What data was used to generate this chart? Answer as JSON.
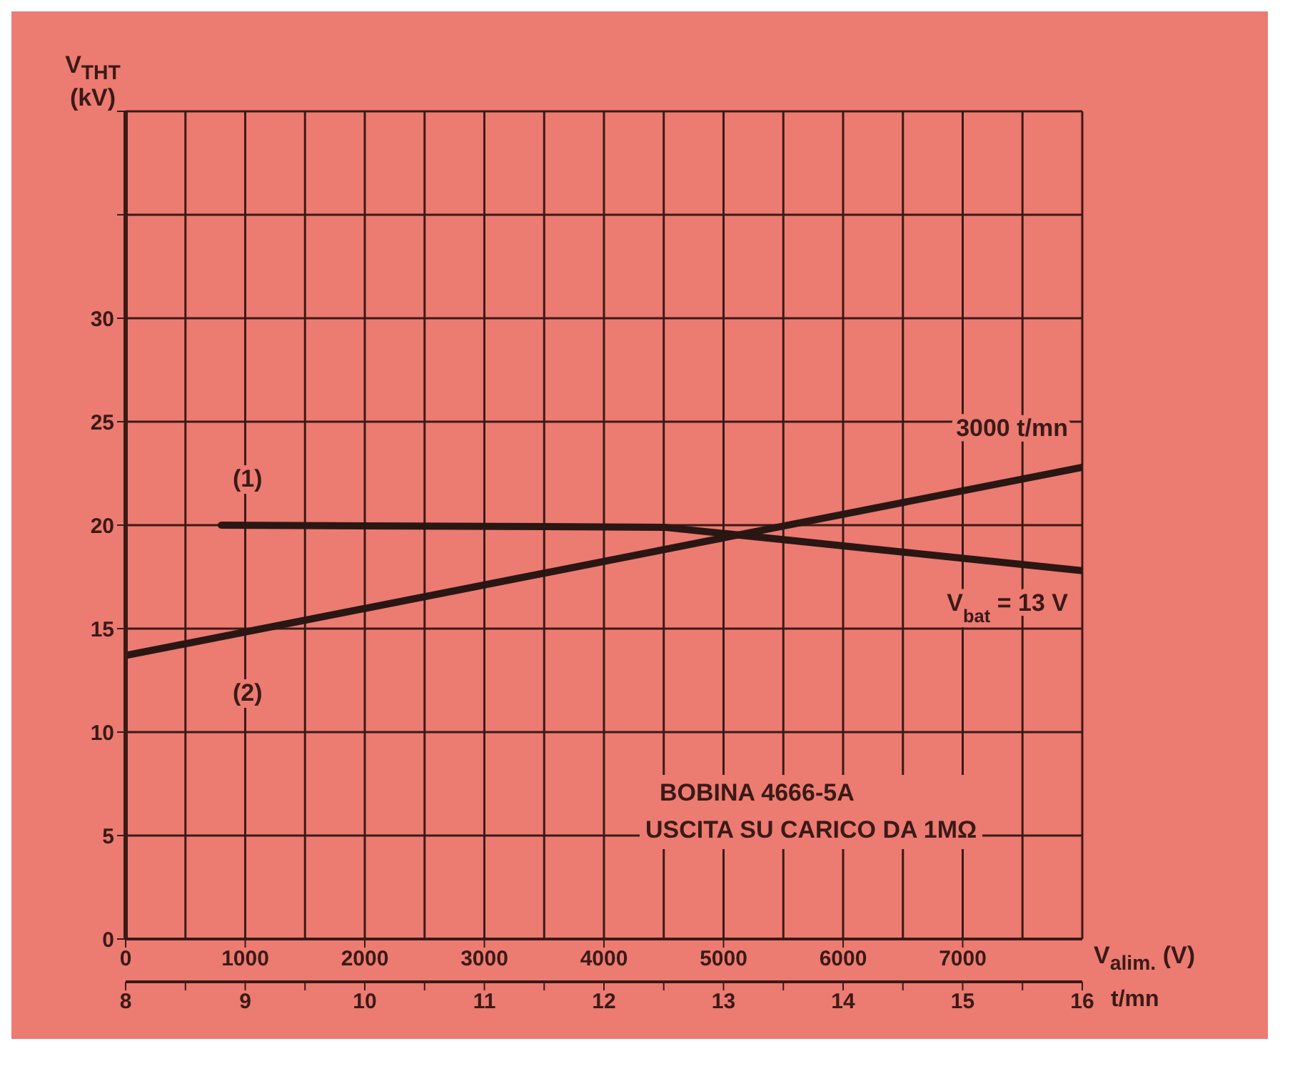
{
  "chart_data": {
    "type": "line",
    "ylabel": "V$_{THT}$ (kV)",
    "xlabel": "t/mn",
    "x2label": "V$_{alim.}$ (V)",
    "xlim": [
      0,
      8000
    ],
    "xticks": [
      0,
      1000,
      2000,
      3000,
      4000,
      5000,
      6000,
      7000
    ],
    "x2lim": [
      8,
      16
    ],
    "x2ticks": [
      8,
      {
        "value": 8.5,
        "label": null
      },
      9,
      {
        "value": 9.5,
        "label": null
      },
      10,
      {
        "value": 10.5,
        "label": null
      },
      11,
      {
        "value": 11.5,
        "label": null
      },
      12,
      {
        "value": 12.5,
        "label": null
      },
      13,
      {
        "value": 13.5,
        "label": null
      },
      14,
      {
        "value": 14.5,
        "label": null
      },
      15,
      {
        "value": 15.5,
        "label": null
      },
      16
    ],
    "ylim": [
      0,
      40
    ],
    "yticks": [
      0,
      5,
      10,
      15,
      20,
      25,
      30,
      {
        "value": 35,
        "label": null
      },
      {
        "value": 40,
        "label": null
      }
    ],
    "grid": true,
    "marker": "none",
    "line_style": "solid",
    "series": [
      {
        "name": "V$_{bat}$ = 13 V",
        "color": "#2a1714",
        "x": [
          800,
          4500,
          5000,
          8000
        ],
        "values": [
          20,
          19.9,
          19.6,
          17.8
        ]
      },
      {
        "name": "3000 t/mn",
        "color": "#2a1714",
        "axis": "x2",
        "x": [
          8,
          16
        ],
        "values": [
          13.7,
          22.8
        ]
      }
    ],
    "annotations": [
      "(1)",
      "(2)",
      "BOBINA 4666-5A",
      "USCITA SU CARICO DA 1MΩ"
    ]
  }
}
